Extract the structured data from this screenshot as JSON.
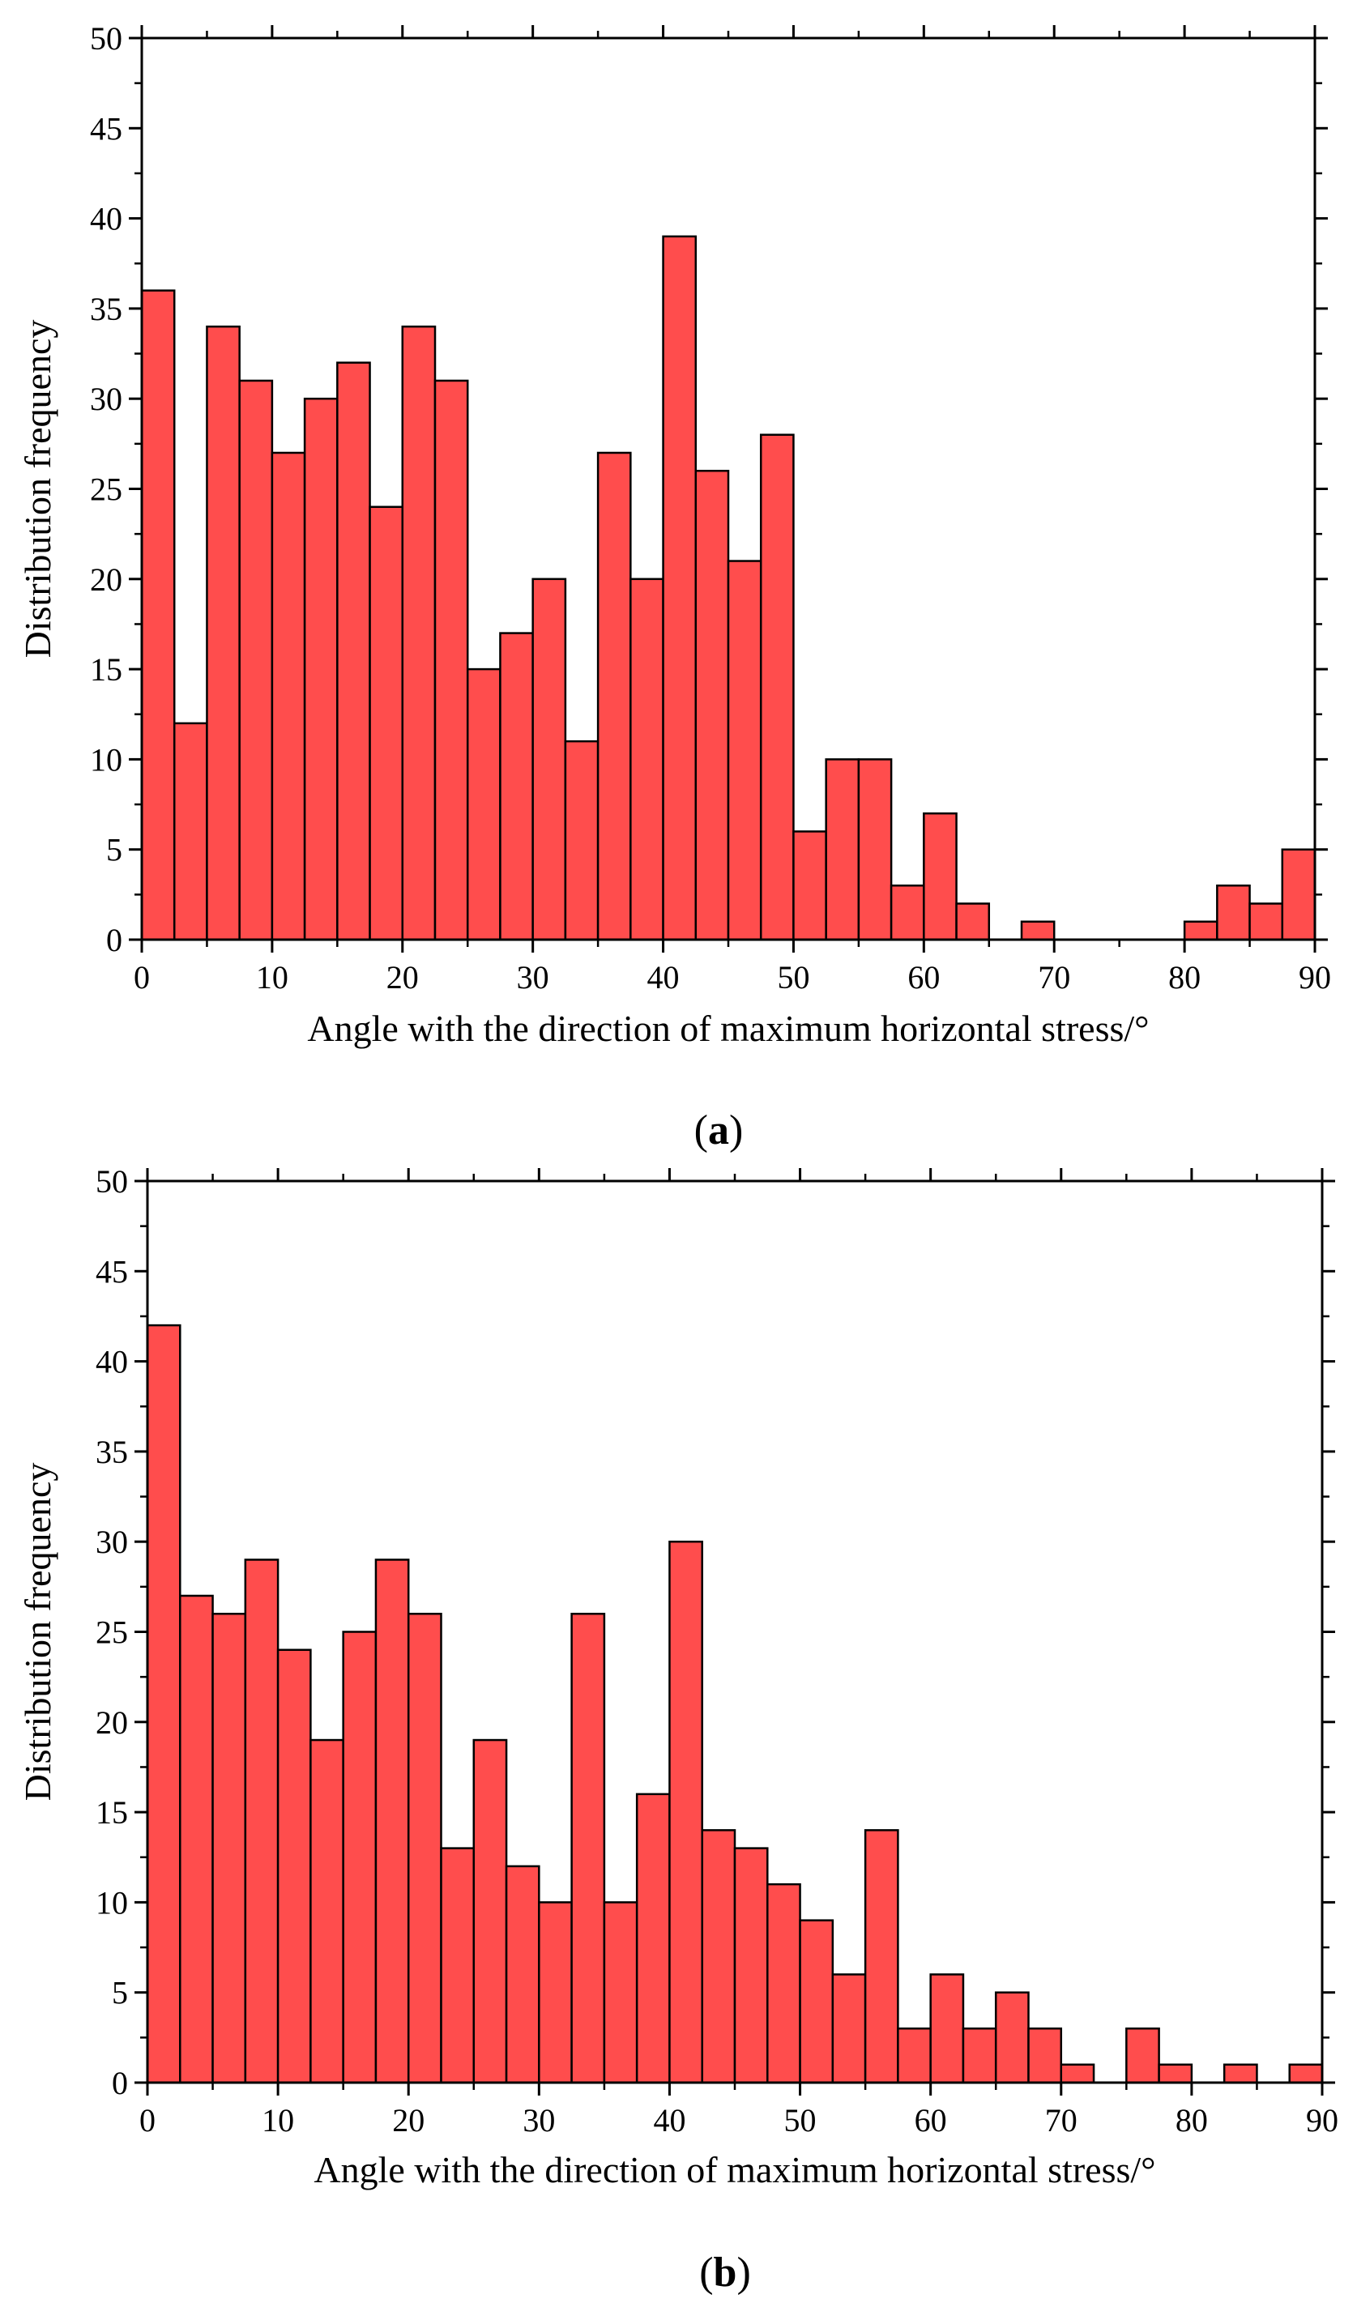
{
  "chart_data": [
    {
      "type": "bar",
      "panel_label": "a",
      "bar_color": "#ff4d4d",
      "bin_width": 2.5,
      "x_start": 0,
      "values": [
        36,
        12,
        34,
        31,
        27,
        30,
        32,
        24,
        34,
        31,
        15,
        17,
        20,
        11,
        27,
        20,
        39,
        26,
        21,
        28,
        6,
        10,
        10,
        3,
        7,
        2,
        0,
        1,
        0,
        0,
        0,
        0,
        1,
        3,
        2,
        5
      ],
      "xlabel": "Angle with the direction of maximum horizontal stress/°",
      "ylabel": "Distribution frequency",
      "xlim": [
        0,
        90
      ],
      "ylim": [
        0,
        50
      ],
      "xticks": [
        "0",
        "10",
        "20",
        "30",
        "40",
        "50",
        "60",
        "70",
        "80",
        "90"
      ],
      "yticks": [
        "0",
        "5",
        "10",
        "15",
        "20",
        "25",
        "30",
        "35",
        "40",
        "45",
        "50"
      ]
    },
    {
      "type": "bar",
      "panel_label": "b",
      "bar_color": "#ff4d4d",
      "bin_width": 2.5,
      "x_start": 0,
      "values": [
        42,
        27,
        26,
        29,
        24,
        19,
        25,
        29,
        26,
        13,
        19,
        12,
        10,
        26,
        10,
        16,
        30,
        14,
        13,
        11,
        9,
        6,
        14,
        3,
        6,
        3,
        5,
        3,
        1,
        0,
        3,
        1,
        0,
        1,
        0,
        1
      ],
      "xlabel": "Angle with the direction of maximum horizontal stress/°",
      "ylabel": "Distribution frequency",
      "xlim": [
        0,
        90
      ],
      "ylim": [
        0,
        50
      ],
      "xticks": [
        "0",
        "10",
        "20",
        "30",
        "40",
        "50",
        "60",
        "70",
        "80",
        "90"
      ],
      "yticks": [
        "0",
        "5",
        "10",
        "15",
        "20",
        "25",
        "30",
        "35",
        "40",
        "45",
        "50"
      ]
    }
  ]
}
